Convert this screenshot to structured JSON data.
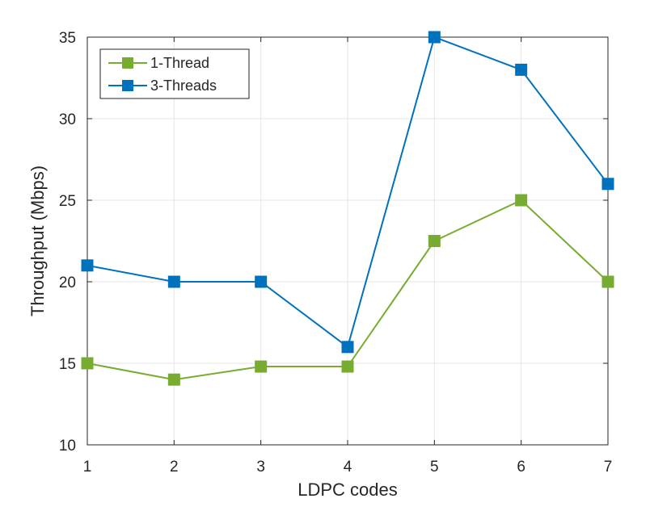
{
  "chart_data": {
    "type": "line",
    "x": [
      1,
      2,
      3,
      4,
      5,
      6,
      7
    ],
    "series": [
      {
        "name": "1-Thread",
        "color": "#77AC30",
        "marker": "square",
        "values": [
          15,
          14,
          14.8,
          14.8,
          22.5,
          25,
          20
        ]
      },
      {
        "name": "3-Threads",
        "color": "#0072BD",
        "marker": "square",
        "values": [
          21,
          20,
          20,
          16,
          35,
          33,
          26
        ]
      }
    ],
    "xlabel": "LDPC codes",
    "ylabel": "Throughput (Mbps)",
    "xlim": [
      1,
      7
    ],
    "ylim": [
      10,
      35
    ],
    "xticks": [
      "1",
      "2",
      "3",
      "4",
      "5",
      "6",
      "7"
    ],
    "yticks": [
      "10",
      "15",
      "20",
      "25",
      "30",
      "35"
    ],
    "grid": true,
    "legend": "top-left"
  }
}
